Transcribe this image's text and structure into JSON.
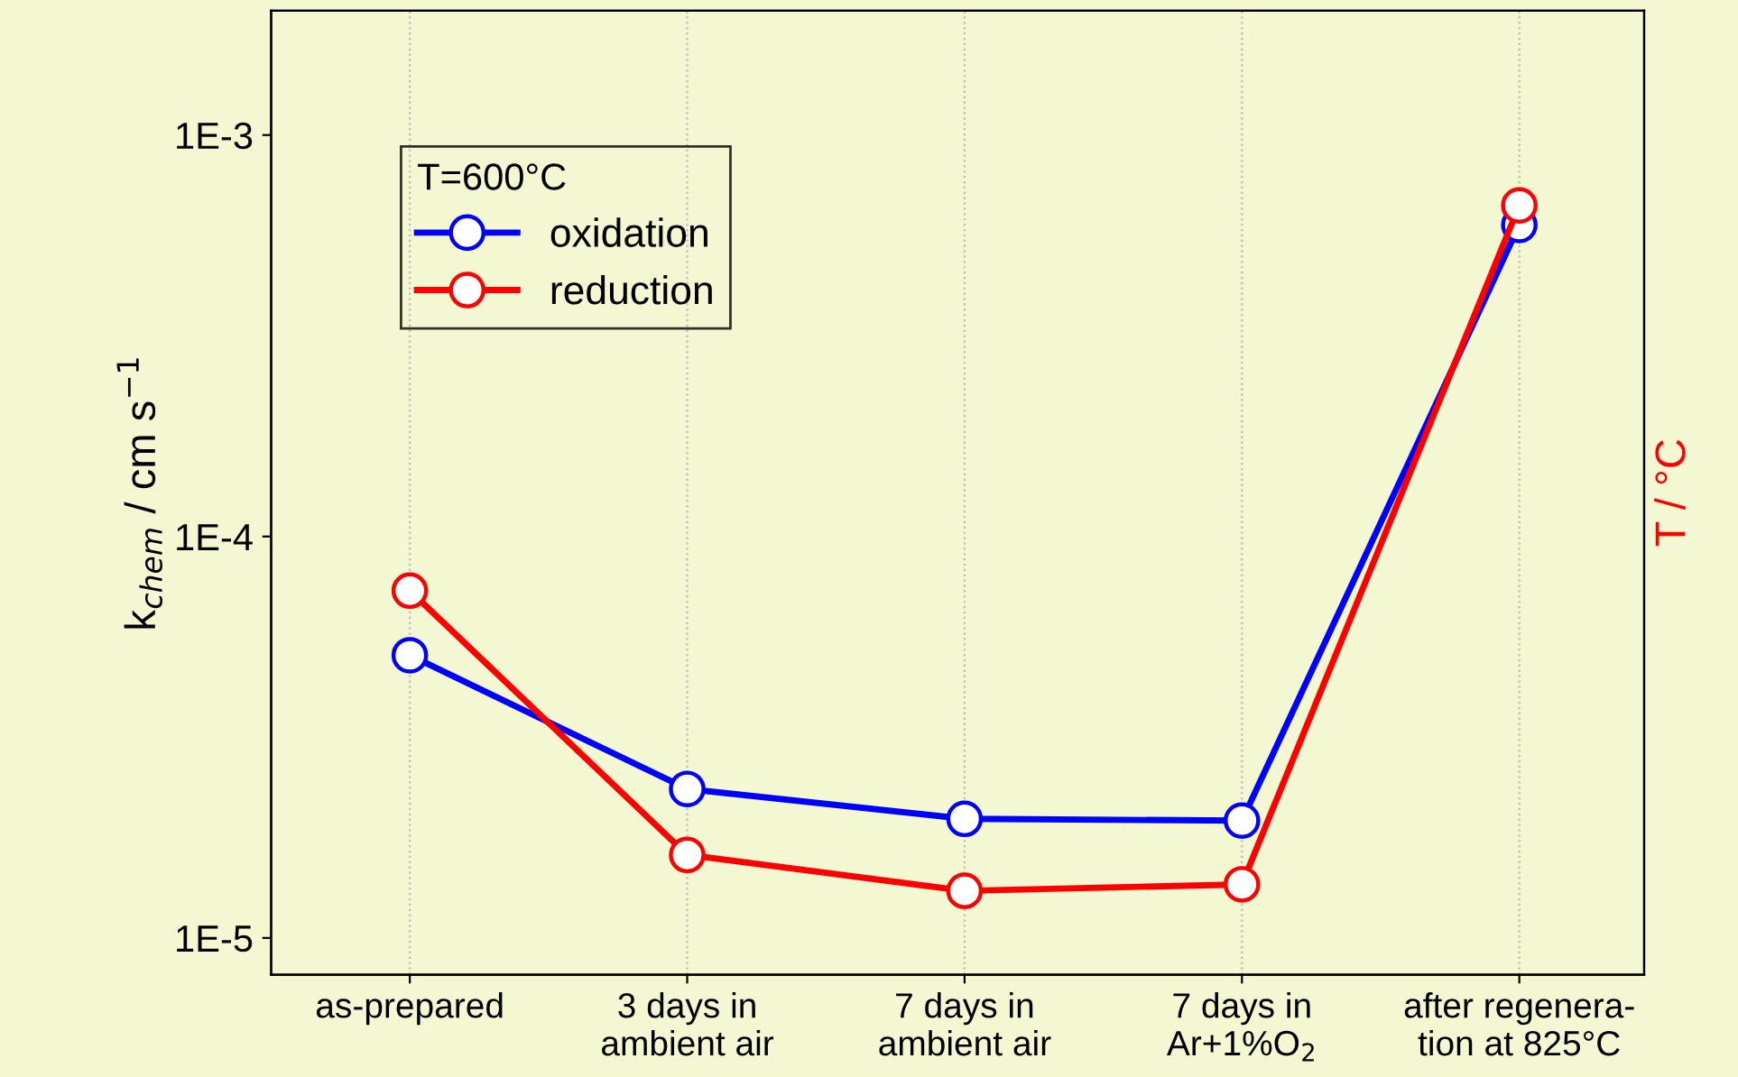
{
  "chart_data": {
    "type": "line",
    "categories": [
      "as-prepared",
      "3 days in\nambient air",
      "7 days in\nambient air",
      "7 days in\nAr+1%O$_{2}$",
      "after regenera-\ntion at 825°C"
    ],
    "series": [
      {
        "name": "oxidation",
        "color": "#0000ff",
        "values": [
          5.06e-05,
          2.35e-05,
          1.98e-05,
          1.96e-05,
          0.000597
        ]
      },
      {
        "name": "reduction",
        "color": "#ff0000",
        "values": [
          7.33e-05,
          1.61e-05,
          1.31e-05,
          1.36e-05,
          0.000668
        ]
      }
    ],
    "log": "y",
    "ylim": [
      8.1e-06,
      0.00204
    ],
    "yticks": [
      {
        "value": 1e-05,
        "label": "1E-5"
      },
      {
        "value": 0.0001,
        "label": "1E-4"
      },
      {
        "value": 0.001,
        "label": "1E-3"
      }
    ],
    "ylabel": "k$_{chem}$ / cm s$^{−1}$",
    "y2label": "T / °C",
    "legend_title": "T=600°C",
    "legend": "top left",
    "marker": "circle",
    "line_style": "solid",
    "grid": "x"
  }
}
